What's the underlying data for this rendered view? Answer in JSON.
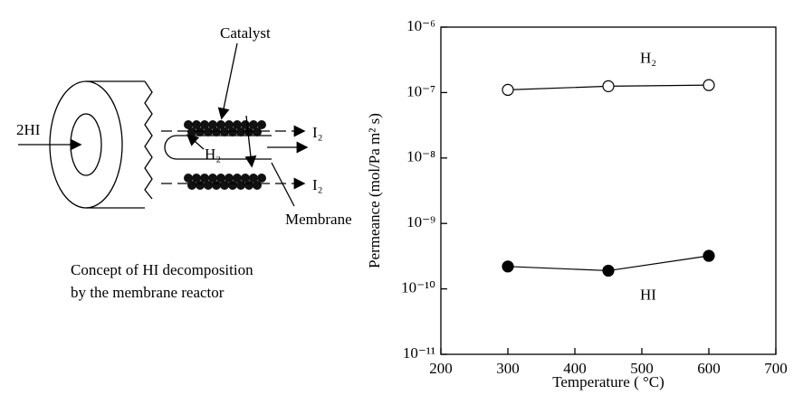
{
  "diagram": {
    "inlet": "2HI",
    "catalyst": "Catalyst",
    "iodine_top": "I₂",
    "hydrogen": "H₂",
    "iodine_bottom": "I₂",
    "membrane": "Membrane",
    "caption": [
      "Concept of HI decomposition",
      "by the membrane reactor"
    ]
  },
  "chart_data": {
    "type": "line",
    "xlabel": "Temperature ( °C)",
    "ylabel": "Permeance (mol/Pa m² s)",
    "x": [
      300,
      450,
      600
    ],
    "series": [
      {
        "name": "H₂",
        "color": "#000000",
        "marker": "open",
        "values": [
          1.1e-07,
          1.25e-07,
          1.3e-07
        ]
      },
      {
        "name": "HI",
        "color": "#000000",
        "marker": "filled",
        "values": [
          2.2e-10,
          1.9e-10,
          3.2e-10
        ]
      }
    ],
    "xlim": [
      200,
      700
    ],
    "xticks": [
      200,
      300,
      400,
      500,
      600,
      700
    ],
    "ylim": [
      1e-11,
      1e-06
    ],
    "ylog": true,
    "yticks": [
      {
        "value": 1e-11,
        "label": "10⁻¹¹"
      },
      {
        "value": 1e-10,
        "label": "10⁻¹⁰"
      },
      {
        "value": 1e-09,
        "label": "10⁻⁹"
      },
      {
        "value": 1e-08,
        "label": "10⁻⁸"
      },
      {
        "value": 1e-07,
        "label": "10⁻⁷"
      },
      {
        "value": 1e-06,
        "label": "10⁻⁶"
      }
    ],
    "grid": false
  }
}
